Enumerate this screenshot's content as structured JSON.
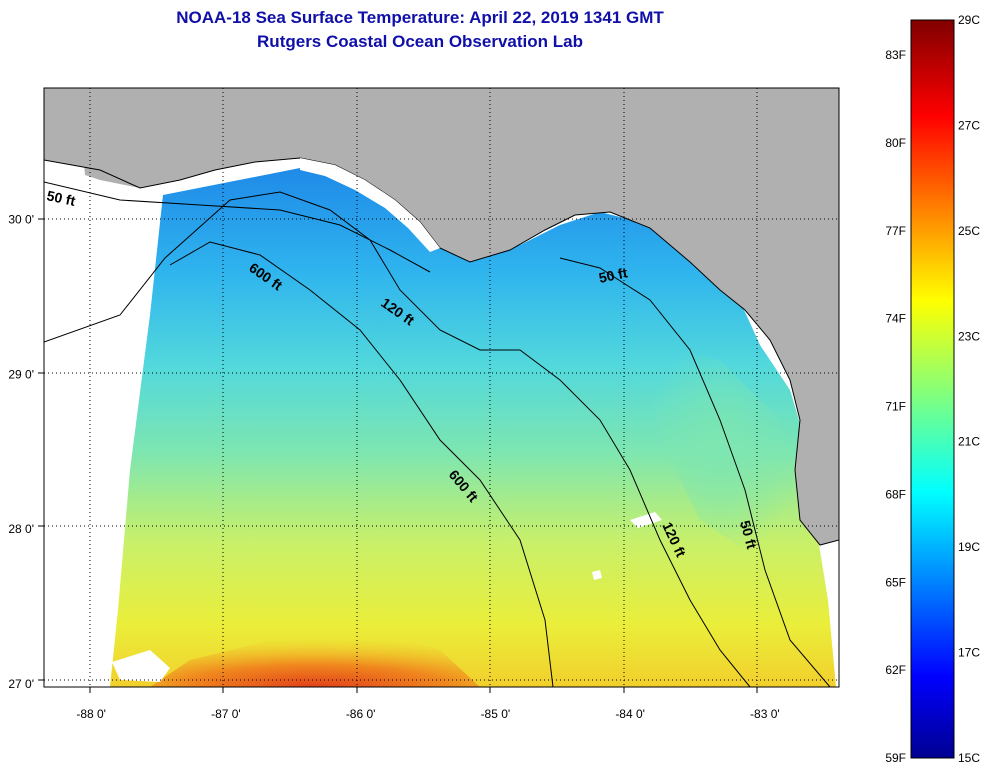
{
  "title": {
    "line1": "NOAA-18 Sea Surface Temperature:  April 22, 2019 1341 GMT",
    "line2": "Rutgers Coastal Ocean Observation Lab"
  },
  "map": {
    "lon_range": [
      -88.35,
      -82.45
    ],
    "lat_range": [
      26.98,
      30.85
    ],
    "graticule": "dotted",
    "land_color": "#b0b0b0",
    "no_data_color": "#ffffff",
    "lon_ticks": [
      {
        "value": -88,
        "label": "-88 0'"
      },
      {
        "value": -87,
        "label": "-87 0'"
      },
      {
        "value": -86,
        "label": "-86 0'"
      },
      {
        "value": -85,
        "label": "-85 0'"
      },
      {
        "value": -84,
        "label": "-84 0'"
      },
      {
        "value": -83,
        "label": "-83 0'"
      }
    ],
    "lat_ticks": [
      {
        "value": 30,
        "label": "30 0'"
      },
      {
        "value": 29,
        "label": "29 0'"
      },
      {
        "value": 28,
        "label": "28 0'"
      },
      {
        "value": 27,
        "label": "27 0'"
      }
    ],
    "contour_labels": {
      "c50_west": "50 ft",
      "c50_east": "50 ft",
      "c50_south": "50 ft",
      "c120_north": "120 ft",
      "c120_south": "120 ft",
      "c600_north": "600 ft",
      "c600_south": "600 ft"
    }
  },
  "colorbar": {
    "colormap": "jet",
    "range_c": [
      15,
      29
    ],
    "celsius_labels": [
      "29C",
      "27C",
      "25C",
      "23C",
      "21C",
      "19C",
      "17C",
      "15C"
    ],
    "fahrenheit_labels": [
      "83F",
      "80F",
      "77F",
      "74F",
      "71F",
      "68F",
      "65F",
      "62F",
      "59F"
    ]
  }
}
